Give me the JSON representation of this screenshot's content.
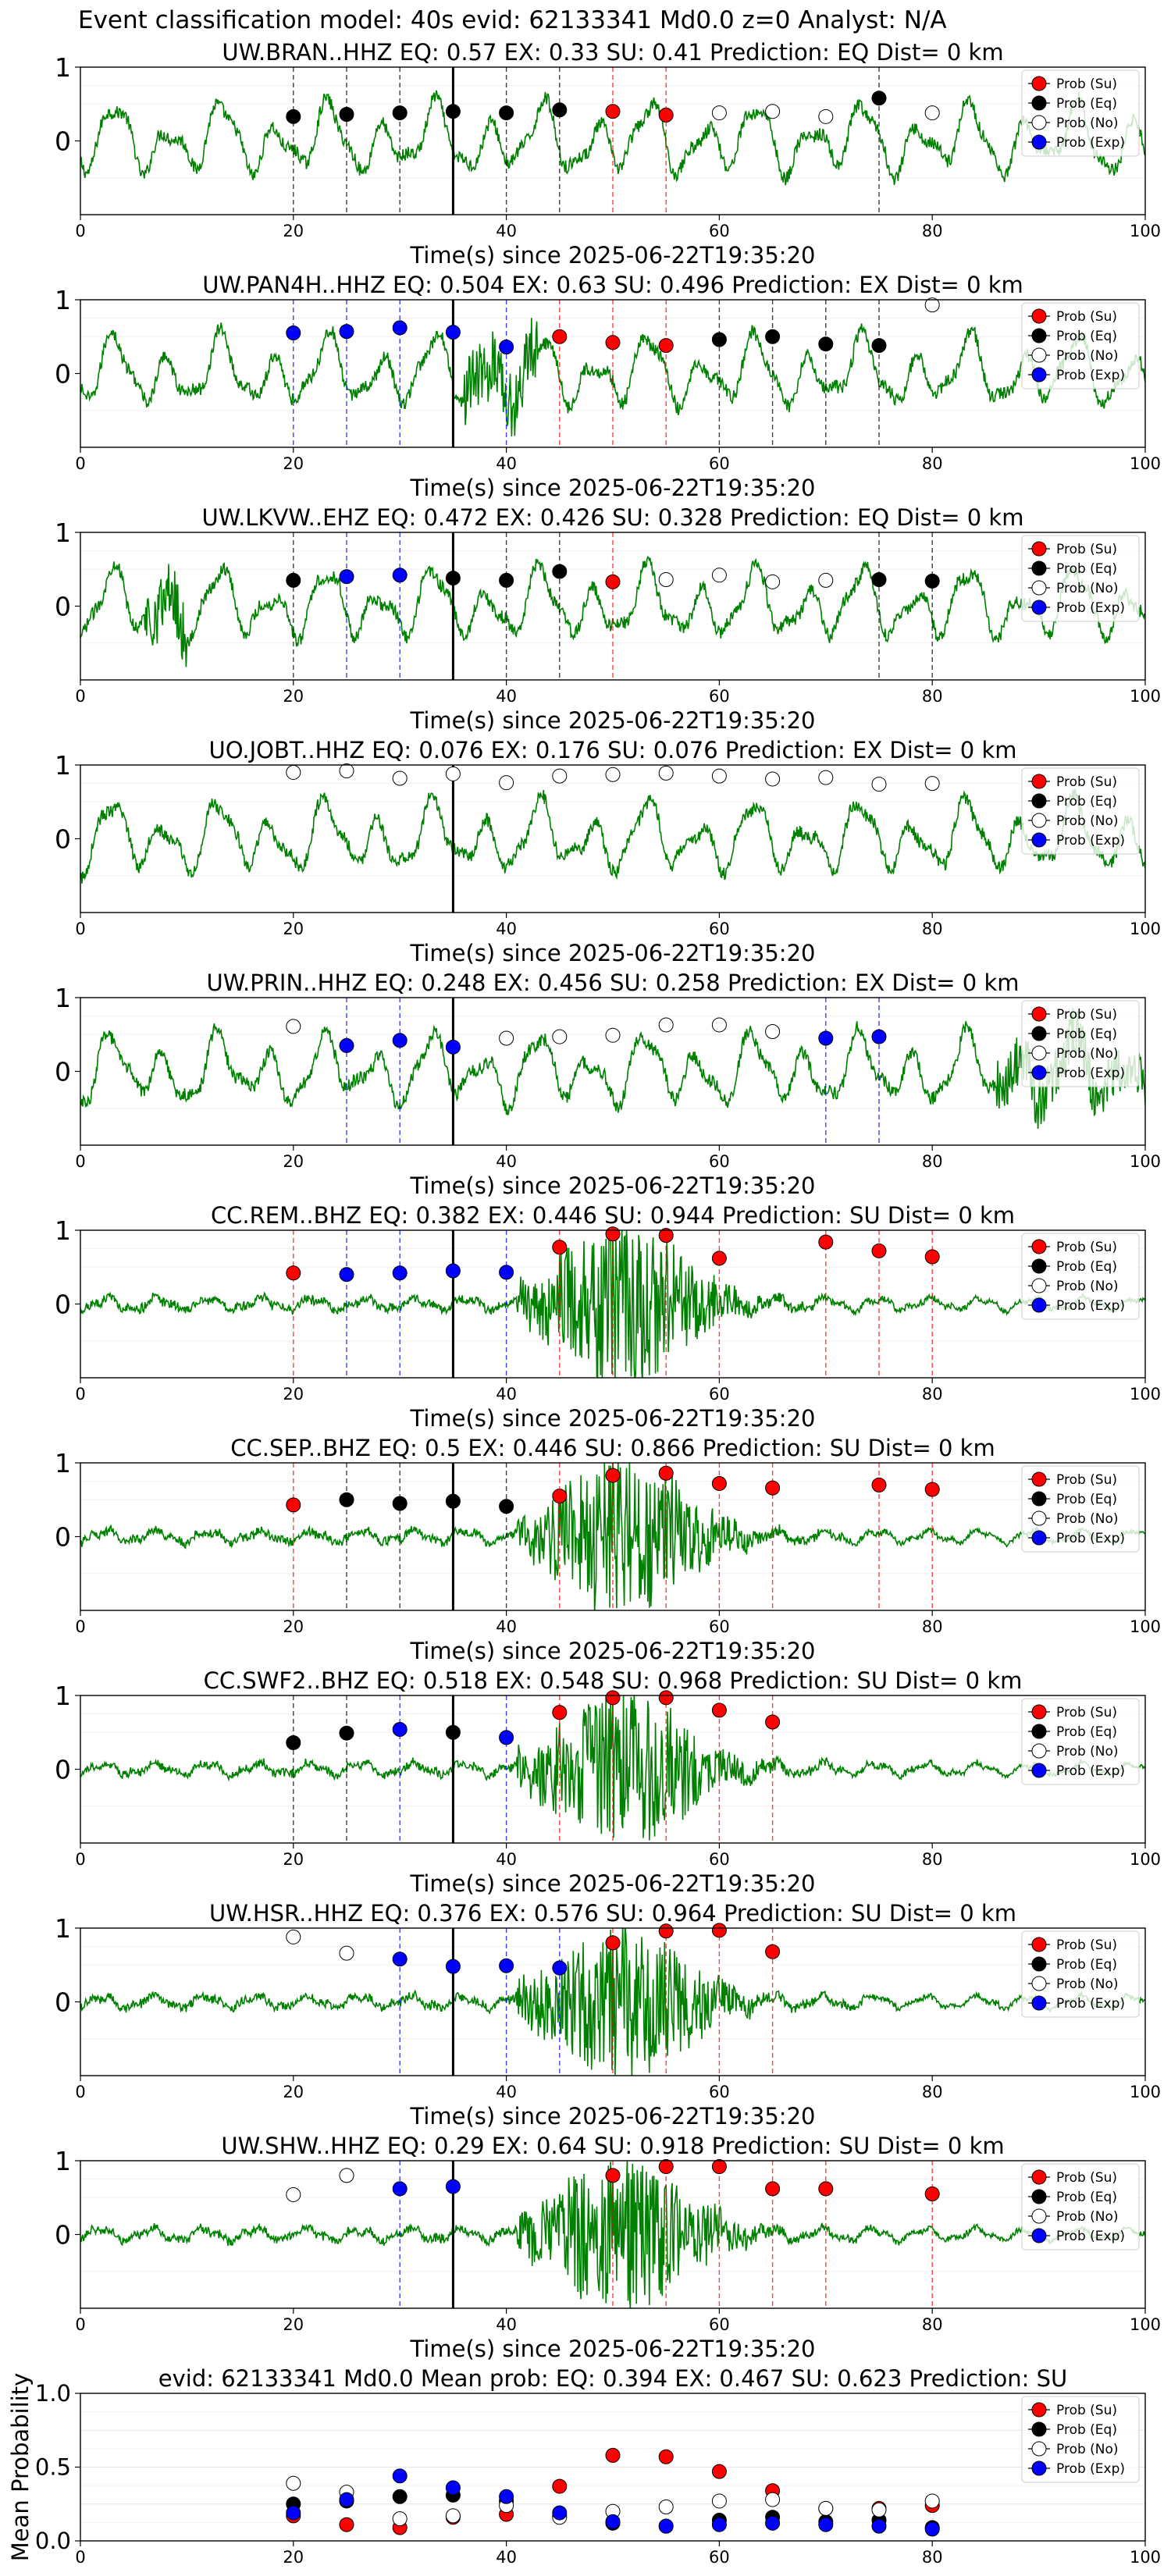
{
  "suptitle": "Event classification model: 40s evid: 62133341 Md0.0 z=0 Analyst: N/A",
  "legend_labels": [
    "Prob (Su)",
    "Prob (Eq)",
    "Prob (No)",
    "Prob (Exp)"
  ],
  "colors": {
    "su": "#ff0000",
    "eq": "#000000",
    "no": "#ffffff",
    "exp": "#0000ff",
    "trace": "#008000",
    "origin_line": "#000000"
  },
  "chart_data": [
    {
      "type": "scatter",
      "title": "UW.BRAN..HHZ   EQ: 0.57  EX: 0.33  SU: 0.41   Prediction: EQ    Dist= 0 km",
      "xlabel": "Time(s) since 2025-06-22T19:35:20",
      "xlim": [
        0,
        100
      ],
      "ylim": [
        -1,
        1
      ],
      "xticks": [
        "0",
        "20",
        "40",
        "60",
        "80",
        "100"
      ],
      "yticks": [
        "1",
        "0"
      ],
      "origin_time": 35,
      "waveform": "noise",
      "points": [
        {
          "x": 20,
          "y": 0.33,
          "c": "eq"
        },
        {
          "x": 25,
          "y": 0.36,
          "c": "eq"
        },
        {
          "x": 30,
          "y": 0.38,
          "c": "eq"
        },
        {
          "x": 35,
          "y": 0.4,
          "c": "eq"
        },
        {
          "x": 40,
          "y": 0.38,
          "c": "eq"
        },
        {
          "x": 45,
          "y": 0.42,
          "c": "eq"
        },
        {
          "x": 50,
          "y": 0.4,
          "c": "su"
        },
        {
          "x": 55,
          "y": 0.35,
          "c": "su"
        },
        {
          "x": 60,
          "y": 0.38,
          "c": "no"
        },
        {
          "x": 65,
          "y": 0.4,
          "c": "no"
        },
        {
          "x": 70,
          "y": 0.33,
          "c": "no"
        },
        {
          "x": 75,
          "y": 0.58,
          "c": "eq"
        },
        {
          "x": 80,
          "y": 0.38,
          "c": "no"
        }
      ]
    },
    {
      "type": "scatter",
      "title": "UW.PAN4H..HHZ   EQ: 0.504  EX: 0.63  SU: 0.496   Prediction: EX    Dist= 0 km",
      "xlabel": "Time(s) since 2025-06-22T19:35:20",
      "xlim": [
        0,
        100
      ],
      "ylim": [
        -1,
        1
      ],
      "xticks": [
        "0",
        "20",
        "40",
        "60",
        "80",
        "100"
      ],
      "yticks": [
        "1",
        "0"
      ],
      "origin_time": 35,
      "waveform": "noise",
      "points": [
        {
          "x": 20,
          "y": 0.55,
          "c": "exp"
        },
        {
          "x": 25,
          "y": 0.57,
          "c": "exp"
        },
        {
          "x": 30,
          "y": 0.62,
          "c": "exp"
        },
        {
          "x": 35,
          "y": 0.56,
          "c": "exp"
        },
        {
          "x": 40,
          "y": 0.36,
          "c": "exp"
        },
        {
          "x": 45,
          "y": 0.5,
          "c": "su"
        },
        {
          "x": 50,
          "y": 0.42,
          "c": "su"
        },
        {
          "x": 55,
          "y": 0.38,
          "c": "su"
        },
        {
          "x": 60,
          "y": 0.46,
          "c": "eq"
        },
        {
          "x": 65,
          "y": 0.5,
          "c": "eq"
        },
        {
          "x": 70,
          "y": 0.4,
          "c": "eq"
        },
        {
          "x": 75,
          "y": 0.38,
          "c": "eq"
        },
        {
          "x": 80,
          "y": 0.93,
          "c": "no"
        }
      ]
    },
    {
      "type": "scatter",
      "title": "UW.LKVW..EHZ   EQ: 0.472  EX: 0.426  SU: 0.328   Prediction: EQ    Dist= 0 km",
      "xlabel": "Time(s) since 2025-06-22T19:35:20",
      "xlim": [
        0,
        100
      ],
      "ylim": [
        -1,
        1
      ],
      "xticks": [
        "0",
        "20",
        "40",
        "60",
        "80",
        "100"
      ],
      "yticks": [
        "1",
        "0"
      ],
      "origin_time": 35,
      "waveform": "noise",
      "points": [
        {
          "x": 20,
          "y": 0.35,
          "c": "eq"
        },
        {
          "x": 25,
          "y": 0.4,
          "c": "exp"
        },
        {
          "x": 30,
          "y": 0.42,
          "c": "exp"
        },
        {
          "x": 35,
          "y": 0.38,
          "c": "eq"
        },
        {
          "x": 40,
          "y": 0.35,
          "c": "eq"
        },
        {
          "x": 45,
          "y": 0.47,
          "c": "eq"
        },
        {
          "x": 50,
          "y": 0.33,
          "c": "su"
        },
        {
          "x": 55,
          "y": 0.36,
          "c": "no"
        },
        {
          "x": 60,
          "y": 0.42,
          "c": "no"
        },
        {
          "x": 65,
          "y": 0.33,
          "c": "no"
        },
        {
          "x": 70,
          "y": 0.35,
          "c": "no"
        },
        {
          "x": 75,
          "y": 0.36,
          "c": "eq"
        },
        {
          "x": 80,
          "y": 0.34,
          "c": "eq"
        }
      ]
    },
    {
      "type": "scatter",
      "title": "UO.JOBT..HHZ   EQ: 0.076  EX: 0.176  SU: 0.076   Prediction: EX    Dist= 0 km",
      "xlabel": "Time(s) since 2025-06-22T19:35:20",
      "xlim": [
        0,
        100
      ],
      "ylim": [
        -1,
        1
      ],
      "xticks": [
        "0",
        "20",
        "40",
        "60",
        "80",
        "100"
      ],
      "yticks": [
        "1",
        "0"
      ],
      "origin_time": 35,
      "waveform": "noise",
      "points": [
        {
          "x": 20,
          "y": 0.9,
          "c": "no"
        },
        {
          "x": 25,
          "y": 0.92,
          "c": "no"
        },
        {
          "x": 30,
          "y": 0.82,
          "c": "no"
        },
        {
          "x": 35,
          "y": 0.88,
          "c": "no"
        },
        {
          "x": 40,
          "y": 0.76,
          "c": "no"
        },
        {
          "x": 45,
          "y": 0.85,
          "c": "no"
        },
        {
          "x": 50,
          "y": 0.87,
          "c": "no"
        },
        {
          "x": 55,
          "y": 0.89,
          "c": "no"
        },
        {
          "x": 60,
          "y": 0.85,
          "c": "no"
        },
        {
          "x": 65,
          "y": 0.81,
          "c": "no"
        },
        {
          "x": 70,
          "y": 0.83,
          "c": "no"
        },
        {
          "x": 75,
          "y": 0.74,
          "c": "no"
        },
        {
          "x": 80,
          "y": 0.75,
          "c": "no"
        }
      ]
    },
    {
      "type": "scatter",
      "title": "UW.PRIN..HHZ   EQ: 0.248  EX: 0.456  SU: 0.258   Prediction: EX    Dist= 0 km",
      "xlabel": "Time(s) since 2025-06-22T19:35:20",
      "xlim": [
        0,
        100
      ],
      "ylim": [
        -1,
        1
      ],
      "xticks": [
        "0",
        "20",
        "40",
        "60",
        "80",
        "100"
      ],
      "yticks": [
        "1",
        "0"
      ],
      "origin_time": 35,
      "waveform": "noise",
      "points": [
        {
          "x": 20,
          "y": 0.61,
          "c": "no"
        },
        {
          "x": 25,
          "y": 0.35,
          "c": "exp"
        },
        {
          "x": 30,
          "y": 0.42,
          "c": "exp"
        },
        {
          "x": 35,
          "y": 0.33,
          "c": "exp"
        },
        {
          "x": 40,
          "y": 0.45,
          "c": "no"
        },
        {
          "x": 45,
          "y": 0.47,
          "c": "no"
        },
        {
          "x": 50,
          "y": 0.49,
          "c": "no"
        },
        {
          "x": 55,
          "y": 0.63,
          "c": "no"
        },
        {
          "x": 60,
          "y": 0.63,
          "c": "no"
        },
        {
          "x": 65,
          "y": 0.54,
          "c": "no"
        },
        {
          "x": 70,
          "y": 0.45,
          "c": "exp"
        },
        {
          "x": 75,
          "y": 0.47,
          "c": "exp"
        }
      ]
    },
    {
      "type": "scatter",
      "title": "CC.REM..BHZ   EQ: 0.382  EX: 0.446  SU: 0.944   Prediction: SU    Dist= 0 km",
      "xlabel": "Time(s) since 2025-06-22T19:35:20",
      "xlim": [
        0,
        100
      ],
      "ylim": [
        -1,
        1
      ],
      "xticks": [
        "0",
        "20",
        "40",
        "60",
        "80",
        "100"
      ],
      "yticks": [
        "1",
        "0"
      ],
      "origin_time": 35,
      "waveform": "burst",
      "points": [
        {
          "x": 20,
          "y": 0.42,
          "c": "su"
        },
        {
          "x": 25,
          "y": 0.4,
          "c": "exp"
        },
        {
          "x": 30,
          "y": 0.42,
          "c": "exp"
        },
        {
          "x": 35,
          "y": 0.45,
          "c": "exp"
        },
        {
          "x": 40,
          "y": 0.43,
          "c": "exp"
        },
        {
          "x": 45,
          "y": 0.77,
          "c": "su"
        },
        {
          "x": 50,
          "y": 0.95,
          "c": "su"
        },
        {
          "x": 55,
          "y": 0.93,
          "c": "su"
        },
        {
          "x": 60,
          "y": 0.62,
          "c": "su"
        },
        {
          "x": 70,
          "y": 0.84,
          "c": "su"
        },
        {
          "x": 75,
          "y": 0.72,
          "c": "su"
        },
        {
          "x": 80,
          "y": 0.64,
          "c": "su"
        }
      ]
    },
    {
      "type": "scatter",
      "title": "CC.SEP..BHZ   EQ: 0.5  EX: 0.446  SU: 0.866   Prediction: SU    Dist= 0 km",
      "xlabel": "Time(s) since 2025-06-22T19:35:20",
      "xlim": [
        0,
        100
      ],
      "ylim": [
        -1,
        1
      ],
      "xticks": [
        "0",
        "20",
        "40",
        "60",
        "80",
        "100"
      ],
      "yticks": [
        "1",
        "0"
      ],
      "origin_time": 35,
      "waveform": "burst",
      "points": [
        {
          "x": 20,
          "y": 0.43,
          "c": "su"
        },
        {
          "x": 25,
          "y": 0.5,
          "c": "eq"
        },
        {
          "x": 30,
          "y": 0.45,
          "c": "eq"
        },
        {
          "x": 35,
          "y": 0.48,
          "c": "eq"
        },
        {
          "x": 40,
          "y": 0.41,
          "c": "eq"
        },
        {
          "x": 45,
          "y": 0.55,
          "c": "su"
        },
        {
          "x": 50,
          "y": 0.83,
          "c": "su"
        },
        {
          "x": 55,
          "y": 0.86,
          "c": "su"
        },
        {
          "x": 60,
          "y": 0.72,
          "c": "su"
        },
        {
          "x": 65,
          "y": 0.66,
          "c": "su"
        },
        {
          "x": 75,
          "y": 0.7,
          "c": "su"
        },
        {
          "x": 80,
          "y": 0.64,
          "c": "su"
        }
      ]
    },
    {
      "type": "scatter",
      "title": "CC.SWF2..BHZ   EQ: 0.518  EX: 0.548  SU: 0.968   Prediction: SU    Dist= 0 km",
      "xlabel": "Time(s) since 2025-06-22T19:35:20",
      "xlim": [
        0,
        100
      ],
      "ylim": [
        -1,
        1
      ],
      "xticks": [
        "0",
        "20",
        "40",
        "60",
        "80",
        "100"
      ],
      "yticks": [
        "1",
        "0"
      ],
      "origin_time": 35,
      "waveform": "burst",
      "points": [
        {
          "x": 20,
          "y": 0.36,
          "c": "eq"
        },
        {
          "x": 25,
          "y": 0.49,
          "c": "eq"
        },
        {
          "x": 30,
          "y": 0.54,
          "c": "exp"
        },
        {
          "x": 35,
          "y": 0.5,
          "c": "eq"
        },
        {
          "x": 40,
          "y": 0.43,
          "c": "exp"
        },
        {
          "x": 45,
          "y": 0.77,
          "c": "su"
        },
        {
          "x": 50,
          "y": 0.97,
          "c": "su"
        },
        {
          "x": 55,
          "y": 0.97,
          "c": "su"
        },
        {
          "x": 60,
          "y": 0.8,
          "c": "su"
        },
        {
          "x": 65,
          "y": 0.64,
          "c": "su"
        }
      ]
    },
    {
      "type": "scatter",
      "title": "UW.HSR..HHZ   EQ: 0.376  EX: 0.576  SU: 0.964   Prediction: SU    Dist= 0 km",
      "xlabel": "Time(s) since 2025-06-22T19:35:20",
      "xlim": [
        0,
        100
      ],
      "ylim": [
        -1,
        1
      ],
      "xticks": [
        "0",
        "20",
        "40",
        "60",
        "80",
        "100"
      ],
      "yticks": [
        "1",
        "0"
      ],
      "origin_time": 35,
      "waveform": "burst",
      "points": [
        {
          "x": 20,
          "y": 0.88,
          "c": "no"
        },
        {
          "x": 25,
          "y": 0.66,
          "c": "no"
        },
        {
          "x": 30,
          "y": 0.58,
          "c": "exp"
        },
        {
          "x": 35,
          "y": 0.48,
          "c": "exp"
        },
        {
          "x": 40,
          "y": 0.49,
          "c": "exp"
        },
        {
          "x": 45,
          "y": 0.46,
          "c": "exp"
        },
        {
          "x": 50,
          "y": 0.8,
          "c": "su"
        },
        {
          "x": 55,
          "y": 0.96,
          "c": "su"
        },
        {
          "x": 60,
          "y": 0.97,
          "c": "su"
        },
        {
          "x": 65,
          "y": 0.68,
          "c": "su"
        }
      ]
    },
    {
      "type": "scatter",
      "title": "UW.SHW..HHZ   EQ: 0.29  EX: 0.64  SU: 0.918   Prediction: SU    Dist= 0 km",
      "xlabel": "Time(s) since 2025-06-22T19:35:20",
      "xlim": [
        0,
        100
      ],
      "ylim": [
        -1,
        1
      ],
      "xticks": [
        "0",
        "20",
        "40",
        "60",
        "80",
        "100"
      ],
      "yticks": [
        "1",
        "0"
      ],
      "origin_time": 35,
      "waveform": "burst",
      "points": [
        {
          "x": 20,
          "y": 0.54,
          "c": "no"
        },
        {
          "x": 25,
          "y": 0.8,
          "c": "no"
        },
        {
          "x": 30,
          "y": 0.62,
          "c": "exp"
        },
        {
          "x": 35,
          "y": 0.65,
          "c": "exp"
        },
        {
          "x": 50,
          "y": 0.8,
          "c": "su"
        },
        {
          "x": 55,
          "y": 0.92,
          "c": "su"
        },
        {
          "x": 60,
          "y": 0.92,
          "c": "su"
        },
        {
          "x": 65,
          "y": 0.62,
          "c": "su"
        },
        {
          "x": 70,
          "y": 0.62,
          "c": "su"
        },
        {
          "x": 80,
          "y": 0.55,
          "c": "su"
        }
      ]
    },
    {
      "type": "scatter",
      "title": "evid: 62133341   Md0.0   Mean prob:   EQ: 0.394  EX: 0.467  SU: 0.623   Prediction: SU",
      "xlabel": "",
      "ylabel": "Mean Probability",
      "xlim": [
        0,
        100
      ],
      "ylim": [
        0,
        1
      ],
      "xticks": [
        "0",
        "20",
        "40",
        "60",
        "80",
        "100"
      ],
      "yticks": [
        "1.0",
        "0.5",
        "0.0"
      ],
      "grid": true,
      "series": [
        {
          "name": "Prob (Su)",
          "c": "su",
          "x": [
            20,
            25,
            30,
            35,
            40,
            45,
            50,
            55,
            60,
            65,
            70,
            75,
            80
          ],
          "y": [
            0.17,
            0.11,
            0.09,
            0.16,
            0.18,
            0.37,
            0.58,
            0.57,
            0.47,
            0.34,
            0.22,
            0.22,
            0.24
          ]
        },
        {
          "name": "Prob (Eq)",
          "c": "eq",
          "x": [
            20,
            25,
            30,
            35,
            40,
            45,
            50,
            55,
            60,
            65,
            70,
            75,
            80
          ],
          "y": [
            0.25,
            0.27,
            0.3,
            0.31,
            0.27,
            0.17,
            0.12,
            0.1,
            0.14,
            0.16,
            0.13,
            0.14,
            0.09
          ]
        },
        {
          "name": "Prob (No)",
          "c": "no",
          "x": [
            20,
            25,
            30,
            35,
            40,
            45,
            50,
            55,
            60,
            65,
            70,
            75,
            80
          ],
          "y": [
            0.39,
            0.33,
            0.15,
            0.17,
            0.24,
            0.16,
            0.2,
            0.23,
            0.27,
            0.28,
            0.22,
            0.21,
            0.27
          ]
        },
        {
          "name": "Prob (Exp)",
          "c": "exp",
          "x": [
            20,
            25,
            30,
            35,
            40,
            45,
            50,
            55,
            60,
            65,
            70,
            75,
            80
          ],
          "y": [
            0.19,
            0.28,
            0.44,
            0.36,
            0.3,
            0.19,
            0.13,
            0.1,
            0.11,
            0.12,
            0.11,
            0.1,
            0.08
          ]
        }
      ]
    }
  ]
}
